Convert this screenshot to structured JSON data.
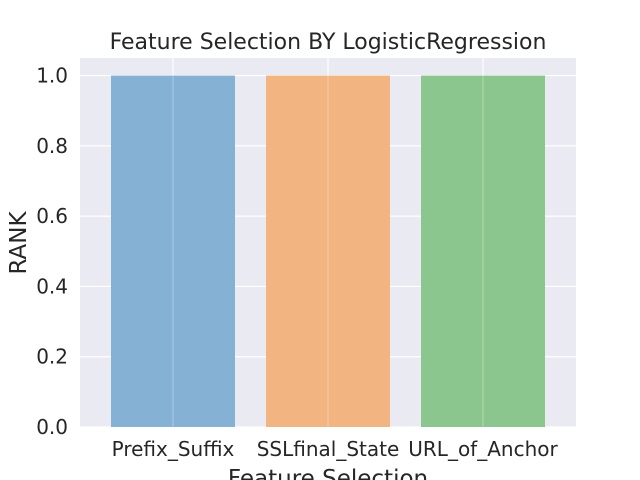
{
  "chart_data": {
    "type": "bar",
    "title": "Feature Selection BY LogisticRegression",
    "xlabel": "Feature Selection",
    "ylabel": "RANK",
    "categories": [
      "Prefix_Suffix",
      "SSLfinal_State",
      "URL_of_Anchor"
    ],
    "values": [
      1.0,
      1.0,
      1.0
    ],
    "ylim": [
      0.0,
      1.05
    ],
    "yticks": [
      "0.0",
      "0.2",
      "0.4",
      "0.6",
      "0.8",
      "1.0"
    ],
    "grid": true,
    "bar_colors": [
      "#85b1d4",
      "#f2b480",
      "#8bc68f"
    ],
    "background_color": "#eaeaf2"
  }
}
